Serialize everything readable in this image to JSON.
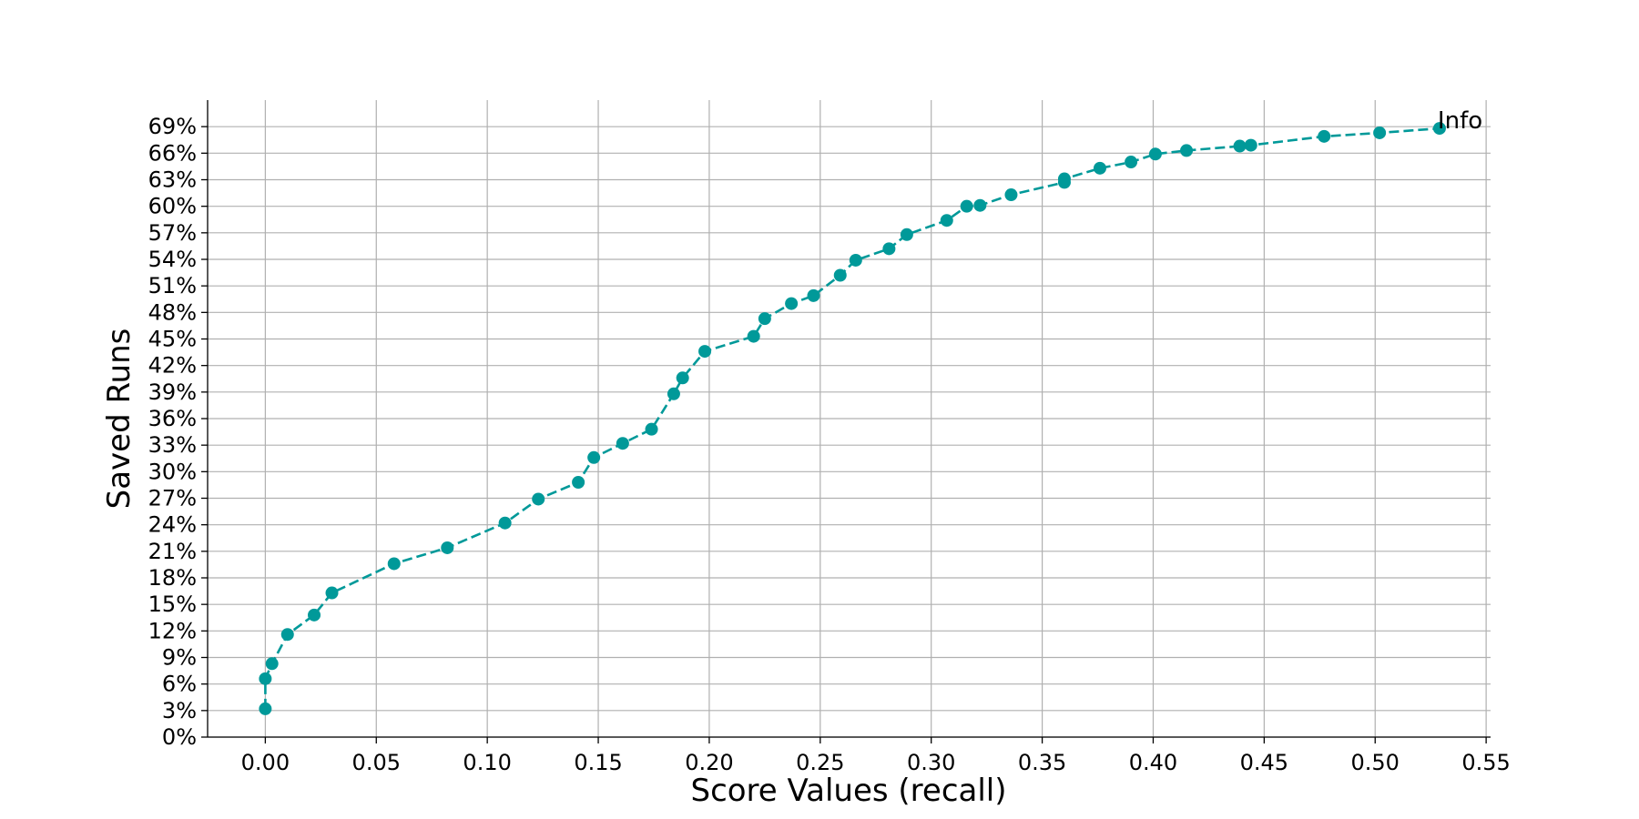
{
  "chart_data": {
    "type": "line",
    "title": "",
    "xlabel": "Score Values (recall)",
    "ylabel": "Saved Runs",
    "xlim": [
      -0.026,
      0.552
    ],
    "ylim": [
      0,
      72
    ],
    "x_ticks": [
      0.0,
      0.05,
      0.1,
      0.15,
      0.2,
      0.25,
      0.3,
      0.35,
      0.4,
      0.45,
      0.5,
      0.55
    ],
    "x_tick_labels": [
      "0.00",
      "0.05",
      "0.10",
      "0.15",
      "0.20",
      "0.25",
      "0.30",
      "0.35",
      "0.40",
      "0.45",
      "0.50",
      "0.55"
    ],
    "y_ticks": [
      0,
      3,
      6,
      9,
      12,
      15,
      18,
      21,
      24,
      27,
      30,
      33,
      36,
      39,
      42,
      45,
      48,
      51,
      54,
      57,
      60,
      63,
      66,
      69
    ],
    "y_tick_labels": [
      "0%",
      "3%",
      "6%",
      "9%",
      "12%",
      "15%",
      "18%",
      "21%",
      "24%",
      "27%",
      "30%",
      "33%",
      "36%",
      "39%",
      "42%",
      "45%",
      "48%",
      "51%",
      "54%",
      "57%",
      "60%",
      "63%",
      "66%",
      "69%"
    ],
    "grid": true,
    "legend": "none",
    "line_style": "dashed",
    "marker": "circle",
    "color": "#009999",
    "annotation": {
      "text": "Info",
      "x": 0.529,
      "y": 69.0
    },
    "series": [
      {
        "x": [
          0.0,
          0.0,
          0.003,
          0.01,
          0.022,
          0.03,
          0.058,
          0.082,
          0.108,
          0.123,
          0.141,
          0.148,
          0.161,
          0.174,
          0.184,
          0.188,
          0.198,
          0.22,
          0.225,
          0.237,
          0.247,
          0.259,
          0.266,
          0.281,
          0.289,
          0.307,
          0.316,
          0.322,
          0.336,
          0.36,
          0.36,
          0.376,
          0.39,
          0.401,
          0.415,
          0.439,
          0.444,
          0.477,
          0.502,
          0.529
        ],
        "y": [
          3.2,
          6.6,
          8.3,
          11.6,
          13.8,
          16.3,
          19.6,
          21.4,
          24.2,
          26.9,
          28.8,
          31.6,
          33.2,
          34.8,
          38.8,
          40.6,
          43.6,
          45.3,
          47.3,
          49.0,
          49.9,
          52.2,
          53.9,
          55.2,
          56.8,
          58.4,
          60.0,
          60.1,
          61.3,
          62.7,
          63.1,
          64.3,
          65.0,
          65.9,
          66.3,
          66.8,
          66.9,
          67.9,
          68.3,
          68.8
        ]
      }
    ]
  }
}
